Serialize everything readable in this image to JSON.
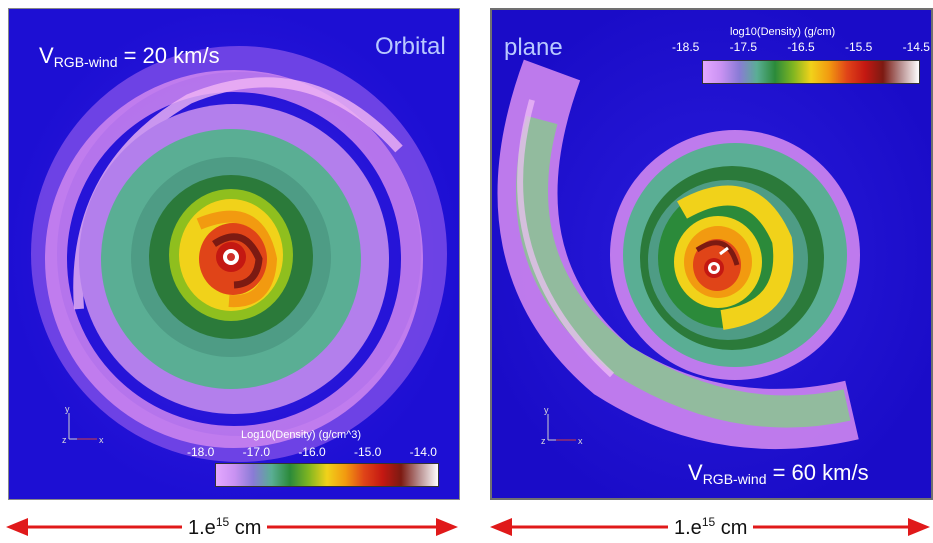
{
  "panels": [
    {
      "id": "left",
      "velocity_label": {
        "prefix": "V",
        "subscript": "RGB-wind",
        "suffix": " = 20 km/s"
      },
      "corner_word": "Orbital",
      "colorbar": {
        "title": "Log10(Density) (g/cm^3)",
        "ticks": [
          "-18.0",
          "-17.0",
          "-16.0",
          "-15.0",
          "-14.0"
        ]
      },
      "axes_labels": {
        "y": "y",
        "z": "z",
        "x": "x"
      }
    },
    {
      "id": "right",
      "velocity_label": {
        "prefix": "V",
        "subscript": "RGB-wind",
        "suffix": " = 60 km/s"
      },
      "corner_word": "plane",
      "colorbar": {
        "title": "log10(Density) (g/cm)",
        "ticks": [
          "-18.5",
          "-17.5",
          "-16.5",
          "-15.5",
          "-14.5"
        ]
      },
      "axes_labels": {
        "y": "y",
        "z": "z",
        "x": "x"
      }
    }
  ],
  "scale_bars": [
    {
      "mantissa": "1.e",
      "exponent": "15",
      "unit": " cm"
    },
    {
      "mantissa": "1.e",
      "exponent": "15",
      "unit": " cm"
    }
  ],
  "colors": {
    "background_blue": "#1d0fd3",
    "arrow_red": "#e0191a",
    "text_white": "#ffffff",
    "corner_word_color": "#b9c9ff"
  }
}
